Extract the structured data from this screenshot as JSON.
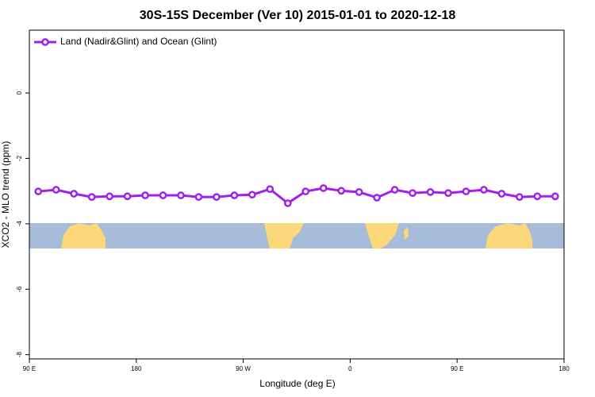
{
  "chart_data": {
    "type": "line",
    "title": "30S-15S December (Ver 10)   2015-01-01 to 2020-12-18",
    "x_label": "Longitude (deg E)",
    "y_label": "XCO2 - MLO trend (ppm)",
    "x": [
      97.5,
      112.5,
      127.5,
      142.5,
      157.5,
      172.5,
      187.5,
      202.5,
      217.5,
      232.5,
      247.5,
      262.5,
      277.5,
      292.5,
      307.5,
      322.5,
      337.5,
      352.5,
      367.5,
      382.5,
      397.5,
      412.5,
      427.5,
      442.5,
      457.5,
      472.5,
      487.5,
      502.5,
      517.5,
      532.5
    ],
    "series": [
      {
        "name": "Land (Nadir&Glint) and Ocean (Glint)",
        "color": "#a020f0",
        "values": [
          -3.01,
          -2.96,
          -3.08,
          -3.18,
          -3.16,
          -3.16,
          -3.13,
          -3.13,
          -3.13,
          -3.18,
          -3.18,
          -3.13,
          -3.11,
          -2.94,
          -3.37,
          -3.01,
          -2.91,
          -2.99,
          -3.03,
          -3.2,
          -2.96,
          -3.06,
          -3.03,
          -3.06,
          -3.01,
          -2.96,
          -3.08,
          -3.18,
          -3.16,
          -3.16
        ]
      }
    ],
    "xlim": [
      90,
      540
    ],
    "xticks": [
      {
        "value": 90,
        "label": "90 E"
      },
      180,
      {
        "value": 270,
        "label": "90 W"
      },
      {
        "value": 360,
        "label": "0"
      },
      {
        "value": 450,
        "label": "90 E"
      },
      {
        "value": 540,
        "label": "180"
      }
    ],
    "ylim": [
      -8.13,
      1.92
    ],
    "yticks": [
      0,
      -2,
      -4,
      -6,
      -8
    ],
    "legend": "upper left",
    "grid": false
  }
}
